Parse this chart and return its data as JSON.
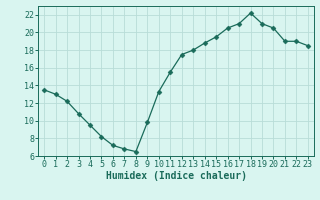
{
  "x": [
    0,
    1,
    2,
    3,
    4,
    5,
    6,
    7,
    8,
    9,
    10,
    11,
    12,
    13,
    14,
    15,
    16,
    17,
    18,
    19,
    20,
    21,
    22,
    23
  ],
  "y": [
    13.5,
    13.0,
    12.2,
    10.8,
    9.5,
    8.2,
    7.2,
    6.8,
    6.5,
    9.8,
    13.3,
    15.5,
    17.5,
    18.0,
    18.8,
    19.5,
    20.5,
    21.0,
    22.2,
    21.0,
    20.5,
    19.0,
    19.0,
    18.5
  ],
  "line_color": "#1a6b5a",
  "marker": "D",
  "marker_size": 2.5,
  "bg_color": "#d9f5f0",
  "grid_color": "#b8ddd8",
  "xlabel": "Humidex (Indice chaleur)",
  "xlabel_fontsize": 7,
  "tick_fontsize": 6,
  "ylim": [
    6,
    23
  ],
  "xlim": [
    -0.5,
    23.5
  ],
  "yticks": [
    6,
    8,
    10,
    12,
    14,
    16,
    18,
    20,
    22
  ],
  "xticks": [
    0,
    1,
    2,
    3,
    4,
    5,
    6,
    7,
    8,
    9,
    10,
    11,
    12,
    13,
    14,
    15,
    16,
    17,
    18,
    19,
    20,
    21,
    22,
    23
  ]
}
